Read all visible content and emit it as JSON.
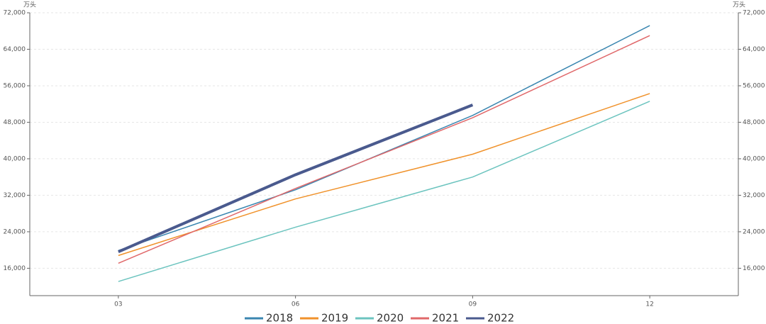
{
  "chart_data": {
    "type": "line",
    "y_unit": "万头",
    "y2_unit": "万头",
    "categories": [
      "03",
      "06",
      "09",
      "12"
    ],
    "series": [
      {
        "name": "2018",
        "color": "#3a86b0",
        "width": 1.5,
        "values": [
          19900,
          33200,
          49500,
          69200
        ]
      },
      {
        "name": "2019",
        "color": "#f0922b",
        "width": 1.5,
        "values": [
          18800,
          31200,
          41000,
          54300
        ]
      },
      {
        "name": "2020",
        "color": "#6cc4bf",
        "width": 1.5,
        "values": [
          13100,
          25000,
          36000,
          52600
        ]
      },
      {
        "name": "2021",
        "color": "#e0686a",
        "width": 1.5,
        "values": [
          17100,
          33500,
          49000,
          67000
        ]
      },
      {
        "name": "2022",
        "color": "#4a5a8e",
        "width": 4,
        "values": [
          19600,
          36500,
          51800,
          null
        ]
      }
    ],
    "ylim": [
      10000,
      72000
    ],
    "yticks": [
      {
        "value": 16000,
        "label": "16,000"
      },
      {
        "value": 24000,
        "label": "24,000"
      },
      {
        "value": 32000,
        "label": "32,000"
      },
      {
        "value": 40000,
        "label": "40,000"
      },
      {
        "value": 48000,
        "label": "48,000"
      },
      {
        "value": 56000,
        "label": "56,000"
      },
      {
        "value": 64000,
        "label": "64,000"
      },
      {
        "value": 72000,
        "label": "72,000"
      }
    ],
    "y2lim": [
      10000,
      72000
    ],
    "y2ticks": [
      {
        "value": 16000,
        "label": "16,000"
      },
      {
        "value": 24000,
        "label": "24,000"
      },
      {
        "value": 32000,
        "label": "32,000"
      },
      {
        "value": 40000,
        "label": "40,000"
      },
      {
        "value": 48000,
        "label": "48,000"
      },
      {
        "value": 56000,
        "label": "56,000"
      },
      {
        "value": 64000,
        "label": "64,000"
      },
      {
        "value": 72000,
        "label": "72,000"
      }
    ],
    "grid": true,
    "legend": "bottom"
  }
}
